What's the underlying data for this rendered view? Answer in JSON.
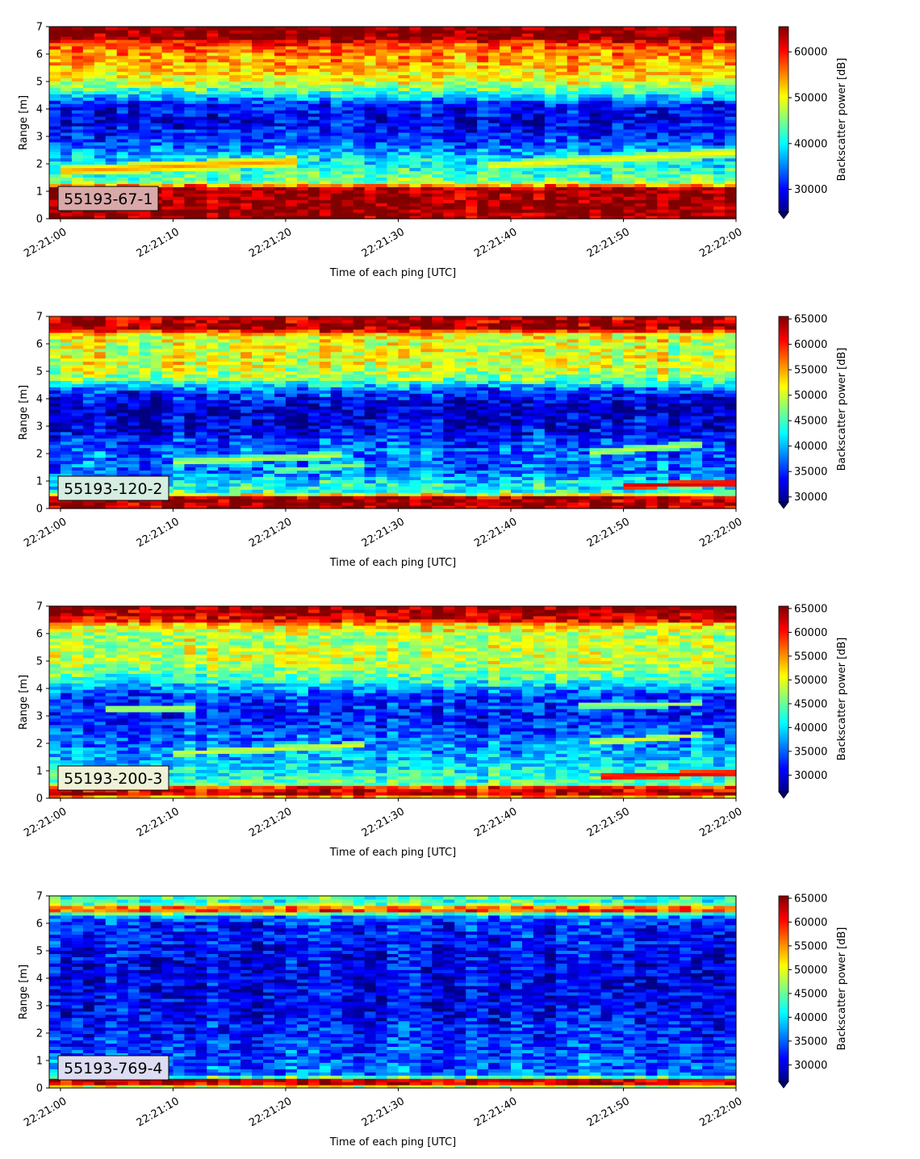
{
  "chart_data": [
    {
      "type": "heatmap",
      "tag": "55193-67-1",
      "tag_bg": "#d9a8a8",
      "xlabel": "Time of each ping [UTC]",
      "ylabel": "Range [m]",
      "xticks": [
        "22:21:00",
        "22:21:10",
        "22:21:20",
        "22:21:30",
        "22:21:40",
        "22:21:50",
        "22:22:00"
      ],
      "xlim": [
        "22:20:59",
        "22:22:00"
      ],
      "ylim": [
        0,
        7
      ],
      "yticks": [
        0,
        1,
        2,
        3,
        4,
        5,
        6,
        7
      ],
      "colorbar": {
        "label": "Backscatter power [dB]",
        "ticks": [
          30000,
          40000,
          50000,
          60000
        ],
        "vmin": 25000,
        "vmax": 65500,
        "extend": "min"
      },
      "colormap": "jet",
      "profile": [
        {
          "r": 0.0,
          "v": 64000
        },
        {
          "r": 0.25,
          "v": 65000
        },
        {
          "r": 1.1,
          "v": 64000
        },
        {
          "r": 1.2,
          "v": 57000
        },
        {
          "r": 1.35,
          "v": 45000
        },
        {
          "r": 1.7,
          "v": 42000
        },
        {
          "r": 2.3,
          "v": 38000
        },
        {
          "r": 2.8,
          "v": 33000
        },
        {
          "r": 3.5,
          "v": 29000
        },
        {
          "r": 4.2,
          "v": 31000
        },
        {
          "r": 4.55,
          "v": 40000
        },
        {
          "r": 5.0,
          "v": 49000
        },
        {
          "r": 5.6,
          "v": 53000
        },
        {
          "r": 6.2,
          "v": 56000
        },
        {
          "r": 6.45,
          "v": 59000
        },
        {
          "r": 6.55,
          "v": 65000
        },
        {
          "r": 7.0,
          "v": 65000
        }
      ],
      "bands": [
        {
          "t0": 0,
          "r0": 1.75,
          "t1": 20,
          "r1": 2.1,
          "w": 0.12,
          "v": 55000
        },
        {
          "t0": 38,
          "r0": 1.95,
          "t1": 60,
          "r1": 2.45,
          "w": 0.1,
          "v": 51000
        }
      ]
    },
    {
      "type": "heatmap",
      "tag": "55193-120-2",
      "tag_bg": "#d6ede2",
      "xlabel": "Time of each ping [UTC]",
      "ylabel": "Range [m]",
      "xticks": [
        "22:21:00",
        "22:21:10",
        "22:21:20",
        "22:21:30",
        "22:21:40",
        "22:21:50",
        "22:22:00"
      ],
      "xlim": [
        "22:20:59",
        "22:22:00"
      ],
      "ylim": [
        0,
        7
      ],
      "yticks": [
        0,
        1,
        2,
        3,
        4,
        5,
        6,
        7
      ],
      "colorbar": {
        "label": "Backscatter power [dB]",
        "ticks": [
          30000,
          35000,
          40000,
          45000,
          50000,
          55000,
          60000,
          65000
        ],
        "vmin": 29000,
        "vmax": 65500,
        "extend": "min"
      },
      "colormap": "jet",
      "profile": [
        {
          "r": 0.0,
          "v": 64500
        },
        {
          "r": 0.4,
          "v": 64500
        },
        {
          "r": 0.5,
          "v": 52000
        },
        {
          "r": 0.65,
          "v": 44000
        },
        {
          "r": 1.0,
          "v": 42000
        },
        {
          "r": 1.3,
          "v": 38000
        },
        {
          "r": 2.2,
          "v": 37000
        },
        {
          "r": 2.8,
          "v": 33500
        },
        {
          "r": 3.6,
          "v": 31000
        },
        {
          "r": 4.3,
          "v": 36000
        },
        {
          "r": 4.7,
          "v": 47000
        },
        {
          "r": 5.3,
          "v": 51000
        },
        {
          "r": 6.0,
          "v": 50000
        },
        {
          "r": 6.4,
          "v": 53000
        },
        {
          "r": 6.55,
          "v": 64500
        },
        {
          "r": 7.0,
          "v": 64000
        }
      ],
      "bands": [
        {
          "t0": 10,
          "r0": 1.7,
          "t1": 24,
          "r1": 1.95,
          "w": 0.08,
          "v": 50000
        },
        {
          "t0": 19,
          "r0": 1.4,
          "t1": 26,
          "r1": 1.6,
          "w": 0.07,
          "v": 48000
        },
        {
          "t0": 47,
          "r0": 2.05,
          "t1": 56,
          "r1": 2.35,
          "w": 0.08,
          "v": 50000
        },
        {
          "t0": 50,
          "r0": 0.85,
          "t1": 61,
          "r1": 0.95,
          "w": 0.07,
          "v": 63000
        }
      ]
    },
    {
      "type": "heatmap",
      "tag": "55193-200-3",
      "tag_bg": "#eef2d8",
      "xlabel": "Time of each ping [UTC]",
      "ylabel": "Range [m]",
      "xticks": [
        "22:21:00",
        "22:21:10",
        "22:21:20",
        "22:21:30",
        "22:21:40",
        "22:21:50",
        "22:22:00"
      ],
      "xlim": [
        "22:20:59",
        "22:22:00"
      ],
      "ylim": [
        0,
        7
      ],
      "yticks": [
        0,
        1,
        2,
        3,
        4,
        5,
        6,
        7
      ],
      "colorbar": {
        "label": "Backscatter power [dB]",
        "ticks": [
          30000,
          35000,
          40000,
          45000,
          50000,
          55000,
          60000,
          65000
        ],
        "vmin": 26500,
        "vmax": 65500,
        "extend": "min"
      },
      "colormap": "jet",
      "profile": [
        {
          "r": 0.0,
          "v": 50000
        },
        {
          "r": 0.15,
          "v": 63000
        },
        {
          "r": 0.4,
          "v": 60000
        },
        {
          "r": 0.5,
          "v": 45000
        },
        {
          "r": 0.9,
          "v": 42000
        },
        {
          "r": 1.4,
          "v": 39000
        },
        {
          "r": 2.3,
          "v": 35000
        },
        {
          "r": 3.0,
          "v": 32500
        },
        {
          "r": 3.8,
          "v": 34000
        },
        {
          "r": 4.4,
          "v": 44000
        },
        {
          "r": 5.0,
          "v": 49000
        },
        {
          "r": 6.0,
          "v": 48000
        },
        {
          "r": 6.35,
          "v": 53000
        },
        {
          "r": 6.5,
          "v": 62000
        },
        {
          "r": 7.0,
          "v": 64500
        }
      ],
      "bands": [
        {
          "t0": 4,
          "r0": 3.25,
          "t1": 11,
          "r1": 3.3,
          "w": 0.08,
          "v": 49000
        },
        {
          "t0": 10,
          "r0": 1.65,
          "t1": 26,
          "r1": 1.95,
          "w": 0.07,
          "v": 50000
        },
        {
          "t0": 47,
          "r0": 2.05,
          "t1": 56,
          "r1": 2.3,
          "w": 0.07,
          "v": 50000
        },
        {
          "t0": 48,
          "r0": 0.8,
          "t1": 61,
          "r1": 0.95,
          "w": 0.07,
          "v": 62000
        },
        {
          "t0": 46,
          "r0": 3.4,
          "t1": 56,
          "r1": 3.45,
          "w": 0.07,
          "v": 48000
        }
      ]
    },
    {
      "type": "heatmap",
      "tag": "55193-769-4",
      "tag_bg": "#dcdcf3",
      "xlabel": "Time of each ping [UTC]",
      "ylabel": "Range [m]",
      "xticks": [
        "22:21:00",
        "22:21:10",
        "22:21:20",
        "22:21:30",
        "22:21:40",
        "22:21:50",
        "22:22:00"
      ],
      "xlim": [
        "22:20:59",
        "22:22:00"
      ],
      "ylim": [
        0,
        7
      ],
      "yticks": [
        0,
        1,
        2,
        3,
        4,
        5,
        6,
        7
      ],
      "colorbar": {
        "label": "Backscatter power [dB]",
        "ticks": [
          30000,
          35000,
          40000,
          45000,
          50000,
          55000,
          60000,
          65000
        ],
        "vmin": 26500,
        "vmax": 65500,
        "extend": "min"
      },
      "colormap": "jet",
      "profile": [
        {
          "r": 0.0,
          "v": 42000
        },
        {
          "r": 0.15,
          "v": 62000
        },
        {
          "r": 0.3,
          "v": 63000
        },
        {
          "r": 0.38,
          "v": 46000
        },
        {
          "r": 0.5,
          "v": 36000
        },
        {
          "r": 1.5,
          "v": 33500
        },
        {
          "r": 3.0,
          "v": 31000
        },
        {
          "r": 4.5,
          "v": 30500
        },
        {
          "r": 6.0,
          "v": 33000
        },
        {
          "r": 6.3,
          "v": 37000
        },
        {
          "r": 6.45,
          "v": 58000
        },
        {
          "r": 6.6,
          "v": 56000
        },
        {
          "r": 6.75,
          "v": 42000
        },
        {
          "r": 7.0,
          "v": 44000
        }
      ],
      "bands": []
    }
  ]
}
